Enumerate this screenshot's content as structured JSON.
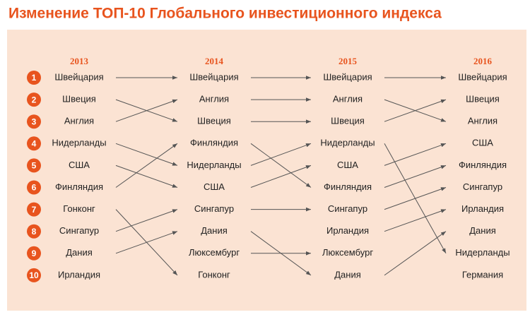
{
  "title": "Изменение ТОП-10 Глобального инвестиционного индекса",
  "ranks": [
    1,
    2,
    3,
    4,
    5,
    6,
    7,
    8,
    9,
    10
  ],
  "columns": [
    {
      "year": "2013",
      "items": [
        "Швейцария",
        "Швеция",
        "Англия",
        "Нидерланды",
        "США",
        "Финляндия",
        "Гонконг",
        "Сингапур",
        "Дания",
        "Ирландия"
      ]
    },
    {
      "year": "2014",
      "items": [
        "Швейцария",
        "Англия",
        "Швеция",
        "Финляндия",
        "Нидерланды",
        "США",
        "Сингапур",
        "Дания",
        "Люксембург",
        "Гонконг"
      ]
    },
    {
      "year": "2015",
      "items": [
        "Швейцария",
        "Англия",
        "Швеция",
        "Нидерланды",
        "США",
        "Финляндия",
        "Сингапур",
        "Ирландия",
        "Люксембург",
        "Дания"
      ]
    },
    {
      "year": "2016",
      "items": [
        "Швейцария",
        "Швеция",
        "Англия",
        "США",
        "Финляндия",
        "Сингапур",
        "Ирландия",
        "Дания",
        "Нидерланды",
        "Германия"
      ]
    }
  ]
}
